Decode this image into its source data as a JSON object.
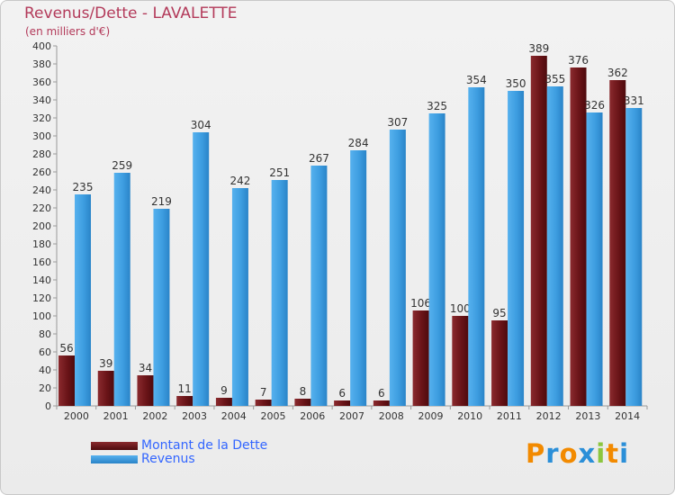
{
  "header": {
    "title": "Revenus/Dette - LAVALETTE",
    "subtitle": "(en milliers d'€)"
  },
  "legend": {
    "items": [
      {
        "label": "Montant de la Dette",
        "color": "#7a1b1f"
      },
      {
        "label": "Revenus",
        "color": "#3d9de0"
      }
    ]
  },
  "logo": {
    "text": "Proxiti",
    "letters": [
      "P",
      "r",
      "o",
      "x",
      "i",
      "t",
      "i"
    ],
    "colors": [
      "#f28a00",
      "#2b8fd8",
      "#f28a00",
      "#2b8fd8",
      "#8cc63f",
      "#f28a00",
      "#2b8fd8"
    ]
  },
  "chart_data": {
    "type": "bar",
    "title": "Revenus/Dette - LAVALETTE",
    "subtitle": "(en milliers d'€)",
    "categories": [
      "2000",
      "2001",
      "2002",
      "2003",
      "2004",
      "2005",
      "2006",
      "2007",
      "2008",
      "2009",
      "2010",
      "2011",
      "2012",
      "2013",
      "2014"
    ],
    "series": [
      {
        "name": "Montant de la Dette",
        "color": "#7a1b1f",
        "values": [
          56,
          39,
          34,
          11,
          9,
          7,
          8,
          6,
          6,
          106,
          100,
          95,
          389,
          376,
          362
        ]
      },
      {
        "name": "Revenus",
        "color": "#3d9de0",
        "values": [
          235,
          259,
          219,
          304,
          242,
          251,
          267,
          284,
          307,
          325,
          354,
          350,
          355,
          326,
          331
        ]
      }
    ],
    "ylim": [
      0,
      400
    ],
    "ytick_step": 20,
    "grid": false,
    "legend_position": "bottom-left"
  }
}
